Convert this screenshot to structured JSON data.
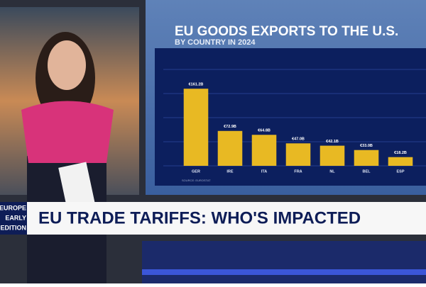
{
  "chart_data": {
    "type": "bar",
    "title": "EU GOODS EXPORTS TO THE U.S.",
    "subtitle": "BY COUNTRY IN 2024",
    "categories": [
      "GER",
      "IRE",
      "ITA",
      "FRA",
      "NL",
      "BEL",
      "ESP"
    ],
    "values": [
      161.2,
      72.9,
      64.8,
      47.0,
      42.1,
      33.0,
      18.2
    ],
    "value_labels": [
      "€161.2B",
      "€72.9B",
      "€64.8B",
      "€47.0B",
      "€42.1B",
      "€33.0B",
      "€18.2B"
    ],
    "color": "#e8b923",
    "ylim": [
      0,
      200
    ],
    "source": "SOURCE: EUROSTAT"
  },
  "banner": {
    "headline": "EU TRADE TARIFFS: WHO'S IMPACTED",
    "show": [
      "EUROPE",
      "EARLY",
      "EDITION"
    ]
  }
}
